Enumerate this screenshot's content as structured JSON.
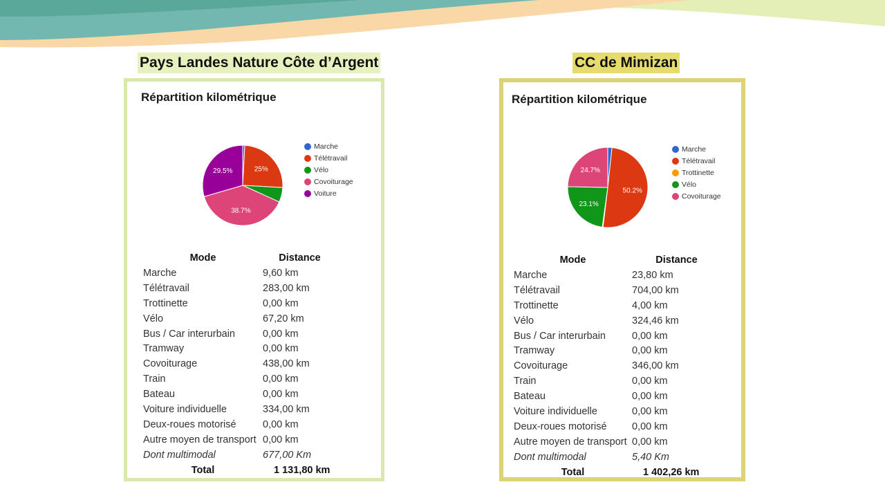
{
  "theme": {
    "left_frame_color": "#d9e8ab",
    "right_frame_color": "#dcd276",
    "title_highlight_left": "#e6f1bf",
    "title_highlight_right": "#e6dc6e"
  },
  "left": {
    "region_title": "Pays Landes Nature Côte d’Argent",
    "chart_title": "Répartition kilométrique",
    "table_headers": {
      "mode": "Mode",
      "distance": "Distance"
    },
    "rows": [
      {
        "mode": "Marche",
        "distance": "9,60 km"
      },
      {
        "mode": "Télétravail",
        "distance": "283,00 km"
      },
      {
        "mode": "Trottinette",
        "distance": "0,00 km"
      },
      {
        "mode": "Vélo",
        "distance": "67,20 km"
      },
      {
        "mode": "Bus / Car interurbain",
        "distance": "0,00 km"
      },
      {
        "mode": "Tramway",
        "distance": "0,00 km"
      },
      {
        "mode": "Covoiturage",
        "distance": "438,00 km"
      },
      {
        "mode": "Train",
        "distance": "0,00 km"
      },
      {
        "mode": "Bateau",
        "distance": "0,00 km"
      },
      {
        "mode": "Voiture individuelle",
        "distance": "334,00 km"
      },
      {
        "mode": "Deux-roues motorisé",
        "distance": "0,00 km"
      },
      {
        "mode": "Autre moyen de transport",
        "distance": "0,00 km"
      }
    ],
    "multimodal": {
      "label": "Dont multimodal",
      "distance": "677,00 Km"
    },
    "total": {
      "label": "Total",
      "distance": "1 131,80 km"
    }
  },
  "right": {
    "region_title": "CC de Mimizan",
    "chart_title": "Répartition kilométrique",
    "table_headers": {
      "mode": "Mode",
      "distance": "Distance"
    },
    "rows": [
      {
        "mode": "Marche",
        "distance": "23,80 km"
      },
      {
        "mode": "Télétravail",
        "distance": "704,00 km"
      },
      {
        "mode": "Trottinette",
        "distance": "4,00 km"
      },
      {
        "mode": "Vélo",
        "distance": "324,46 km"
      },
      {
        "mode": "Bus / Car interurbain",
        "distance": "0,00 km"
      },
      {
        "mode": "Tramway",
        "distance": "0,00 km"
      },
      {
        "mode": "Covoiturage",
        "distance": "346,00 km"
      },
      {
        "mode": "Train",
        "distance": "0,00 km"
      },
      {
        "mode": "Bateau",
        "distance": "0,00 km"
      },
      {
        "mode": "Voiture individuelle",
        "distance": "0,00 km"
      },
      {
        "mode": "Deux-roues motorisé",
        "distance": "0,00 km"
      },
      {
        "mode": "Autre moyen de transport",
        "distance": "0,00 km"
      }
    ],
    "multimodal": {
      "label": "Dont multimodal",
      "distance": "5,40 Km"
    },
    "total": {
      "label": "Total",
      "distance": "1 402,26 km"
    }
  },
  "chart_data": [
    {
      "type": "pie",
      "title": "Répartition kilométrique",
      "legend_position": "right",
      "slices": [
        {
          "name": "Marche",
          "value": 9.6,
          "label": "",
          "color": "#3366cc"
        },
        {
          "name": "Télétravail",
          "value": 283.0,
          "label": "25%",
          "color": "#dc3912"
        },
        {
          "name": "Vélo",
          "value": 67.2,
          "label": "",
          "color": "#109618"
        },
        {
          "name": "Covoiturage",
          "value": 438.0,
          "label": "38.7%",
          "color": "#dd4477"
        },
        {
          "name": "Voiture",
          "value": 334.0,
          "label": "29.5%",
          "color": "#990099"
        }
      ]
    },
    {
      "type": "pie",
      "title": "Répartition kilométrique",
      "legend_position": "right",
      "slices": [
        {
          "name": "Marche",
          "value": 23.8,
          "label": "",
          "color": "#3366cc"
        },
        {
          "name": "Télétravail",
          "value": 704.0,
          "label": "50.2%",
          "color": "#dc3912"
        },
        {
          "name": "Trottinette",
          "value": 4.0,
          "label": "",
          "color": "#ff9900"
        },
        {
          "name": "Vélo",
          "value": 324.46,
          "label": "23.1%",
          "color": "#109618"
        },
        {
          "name": "Covoiturage",
          "value": 346.0,
          "label": "24.7%",
          "color": "#dd4477"
        }
      ]
    }
  ]
}
